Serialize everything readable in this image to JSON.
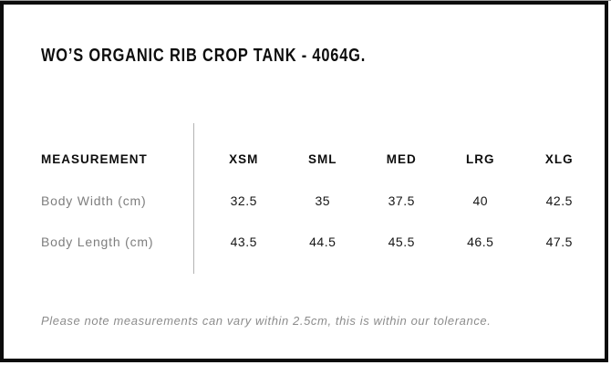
{
  "page": {
    "title": "WO’S ORGANIC RIB CROP TANK - 4064G."
  },
  "size_chart": {
    "header": {
      "measurement": "MEASUREMENT",
      "sizes": [
        "XSM",
        "SML",
        "MED",
        "LRG",
        "XLG"
      ]
    },
    "rows": [
      {
        "label": "Body Width (cm)",
        "values": [
          "32.5",
          "35",
          "37.5",
          "40",
          "42.5"
        ]
      },
      {
        "label": "Body Length (cm)",
        "values": [
          "43.5",
          "44.5",
          "45.5",
          "46.5",
          "47.5"
        ]
      }
    ]
  },
  "note": "Please note measurements can vary within 2.5cm, this is within our tolerance.",
  "colors": {
    "frame_border": "#0c0c0c",
    "heading_text": "#0d0d0d",
    "label_text": "#7e7e7e",
    "value_text": "#161616",
    "note_text": "#8c8c8c",
    "divider": "#b4b4b4",
    "top_edge": "#9c9c9c"
  }
}
